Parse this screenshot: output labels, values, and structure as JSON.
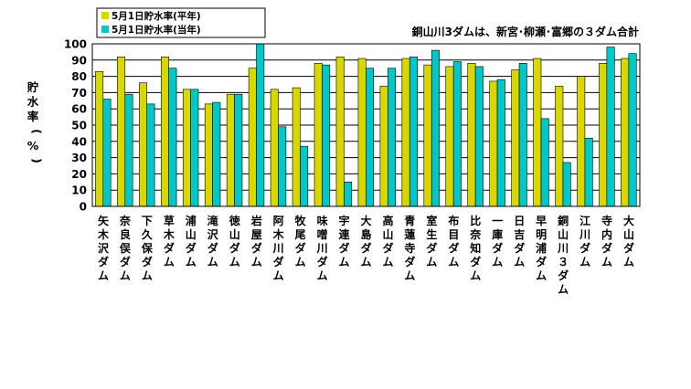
{
  "chart_data": {
    "type": "bar",
    "title": "",
    "annotation": "銅山川3ダムは、新宮･柳瀬･富郷の３ダム合計",
    "ylabel": "貯水率(%)",
    "xlabel": "",
    "ylim": [
      0,
      100
    ],
    "yticks": [
      0,
      10,
      20,
      30,
      40,
      50,
      60,
      70,
      80,
      90,
      100
    ],
    "grid": true,
    "legend_position": "top-left",
    "categories": [
      "矢木沢ダム",
      "奈良俣ダム",
      "下久保ダム",
      "草木ダム",
      "浦山ダム",
      "滝沢ダム",
      "徳山ダム",
      "岩屋ダム",
      "阿木川ダム",
      "牧尾ダム",
      "味噌川ダム",
      "宇連ダム",
      "大島ダム",
      "高山ダム",
      "青蓮寺ダム",
      "室生ダム",
      "布目ダム",
      "比奈知ダム",
      "一庫ダム",
      "日吉ダム",
      "早明浦ダム",
      "銅山川３ダム",
      "江川ダム",
      "寺内ダム",
      "大山ダム"
    ],
    "series": [
      {
        "name": "5月1日貯水率(平年)",
        "color": "#d8d800",
        "values": [
          83,
          92,
          76,
          92,
          72,
          63,
          69,
          85,
          72,
          73,
          88,
          92,
          91,
          74,
          91,
          87,
          86,
          88,
          77,
          84,
          91,
          74,
          80,
          88,
          91
        ]
      },
      {
        "name": "5月1日貯水率(当年)",
        "color": "#00c8c8",
        "values": [
          66,
          69,
          63,
          85,
          72,
          64,
          69,
          100,
          49,
          37,
          87,
          15,
          85,
          85,
          92,
          96,
          89,
          86,
          78,
          88,
          54,
          27,
          42,
          98,
          94
        ]
      }
    ]
  }
}
